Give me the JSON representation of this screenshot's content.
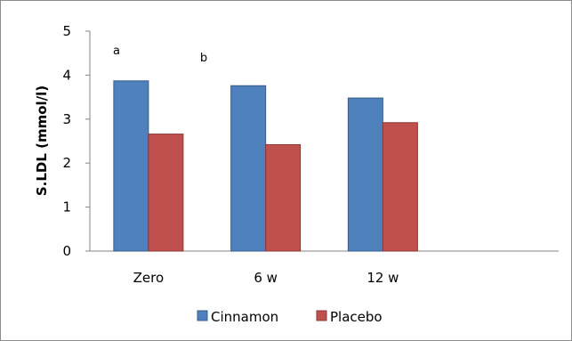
{
  "chart_data": {
    "type": "bar",
    "categories": [
      "Zero",
      "6 w",
      "12 w"
    ],
    "series": [
      {
        "name": "Cinnamon",
        "values": [
          3.87,
          3.76,
          3.48
        ],
        "color": "#4f81bd"
      },
      {
        "name": "Placebo",
        "values": [
          2.66,
          2.42,
          2.92
        ],
        "color": "#c0504d"
      }
    ],
    "ylabel": "S.LDL (mmol/l)",
    "xlabel": "",
    "ylim": [
      0,
      5
    ],
    "yticks": [
      "0",
      "1",
      "2",
      "3",
      "4",
      "5"
    ],
    "annotations": [
      "a",
      "b"
    ],
    "legend_position": "bottom",
    "grid": false
  }
}
